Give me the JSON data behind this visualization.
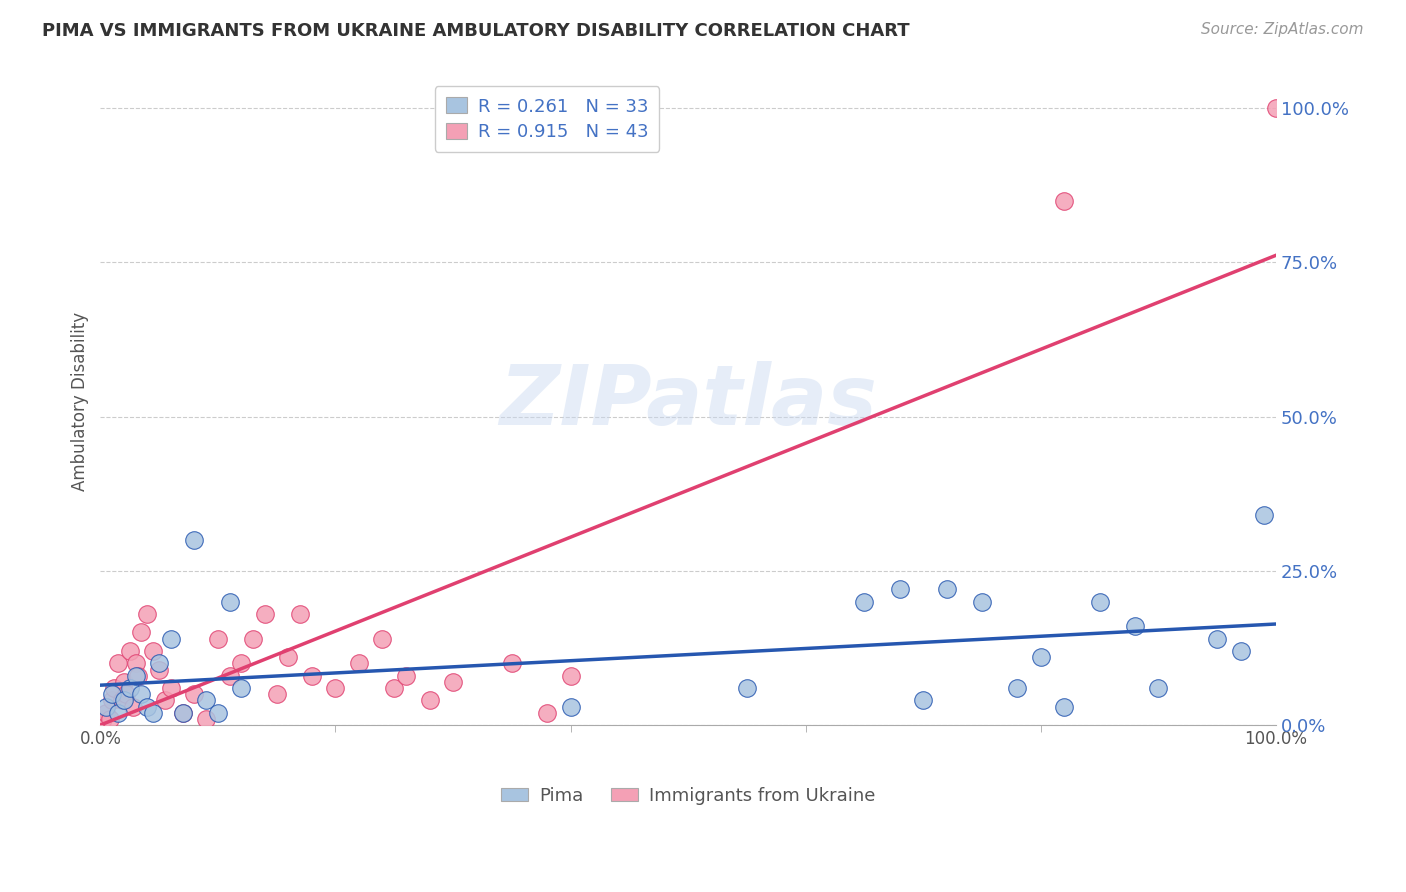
{
  "title": "PIMA VS IMMIGRANTS FROM UKRAINE AMBULATORY DISABILITY CORRELATION CHART",
  "source": "Source: ZipAtlas.com",
  "ylabel": "Ambulatory Disability",
  "watermark": "ZIPatlas",
  "pima_color": "#a8c4e0",
  "ukraine_color": "#f4a0b5",
  "pima_line_color": "#2657b0",
  "ukraine_line_color": "#e04070",
  "ytick_color": "#4472c4",
  "pima_scatter_x": [
    0.5,
    1.0,
    1.5,
    2.0,
    2.5,
    3.0,
    3.5,
    4.0,
    4.5,
    5.0,
    6.0,
    7.0,
    8.0,
    9.0,
    10.0,
    11.0,
    12.0,
    40.0,
    55.0,
    65.0,
    68.0,
    70.0,
    72.0,
    75.0,
    78.0,
    80.0,
    82.0,
    85.0,
    88.0,
    90.0,
    95.0,
    97.0,
    99.0
  ],
  "pima_scatter_y": [
    3.0,
    5.0,
    2.0,
    4.0,
    6.0,
    8.0,
    5.0,
    3.0,
    2.0,
    10.0,
    14.0,
    2.0,
    30.0,
    4.0,
    2.0,
    20.0,
    6.0,
    3.0,
    6.0,
    20.0,
    22.0,
    4.0,
    22.0,
    20.0,
    6.0,
    11.0,
    3.0,
    20.0,
    16.0,
    6.0,
    14.0,
    12.0,
    34.0
  ],
  "ukraine_scatter_x": [
    0.2,
    0.5,
    0.8,
    1.0,
    1.2,
    1.5,
    1.8,
    2.0,
    2.2,
    2.5,
    2.8,
    3.0,
    3.2,
    3.5,
    4.0,
    4.5,
    5.0,
    5.5,
    6.0,
    7.0,
    8.0,
    9.0,
    10.0,
    11.0,
    12.0,
    13.0,
    14.0,
    15.0,
    16.0,
    17.0,
    18.0,
    20.0,
    22.0,
    24.0,
    25.0,
    26.0,
    28.0,
    30.0,
    35.0,
    38.0,
    40.0,
    82.0,
    100.0
  ],
  "ukraine_scatter_y": [
    1.0,
    2.0,
    1.0,
    4.0,
    6.0,
    10.0,
    4.0,
    7.0,
    5.0,
    12.0,
    3.0,
    10.0,
    8.0,
    15.0,
    18.0,
    12.0,
    9.0,
    4.0,
    6.0,
    2.0,
    5.0,
    1.0,
    14.0,
    8.0,
    10.0,
    14.0,
    18.0,
    5.0,
    11.0,
    18.0,
    8.0,
    6.0,
    10.0,
    14.0,
    6.0,
    8.0,
    4.0,
    7.0,
    10.0,
    2.0,
    8.0,
    85.0,
    100.0
  ],
  "pima_R": 0.261,
  "pima_N": 33,
  "ukraine_R": 0.915,
  "ukraine_N": 43,
  "xmin": 0,
  "xmax": 100,
  "ymin": 0,
  "ymax": 105,
  "background_color": "#ffffff",
  "grid_color": "#cccccc",
  "legend_text_color": "#4472c4"
}
